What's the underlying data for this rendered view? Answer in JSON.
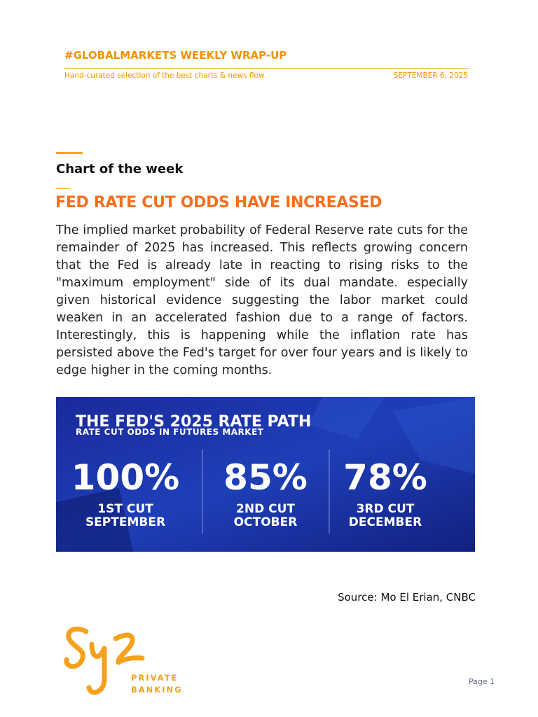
{
  "header": {
    "title": "#GLOBALMARKETS WEEKLY WRAP-UP",
    "subtitle": "Hand-curated selection of the best charts & news flow",
    "date": "SEPTEMBER 6, 2025"
  },
  "section": {
    "label": "Chart of the week",
    "headline": "FED RATE CUT ODDS HAVE INCREASED",
    "body": "The implied market probability of Federal Reserve rate cuts for the remainder of 2025 has increased. This reflects growing concern that the Fed is already late in reacting to rising risks to the \"maximum employment\" side of its dual mandate. especially given historical evidence suggesting the labor market could weaken in an accelerated fashion due to a range of factors. Interestingly, this is happening while the inflation rate has persisted above the Fed's target for over four years and is likely to edge higher in the coming months."
  },
  "graphic": {
    "title": "THE FED'S 2025 RATE PATH",
    "subtitle": "RATE CUT ODDS IN FUTURES MARKET",
    "items": [
      {
        "odds": "100%",
        "cut": "1ST CUT",
        "month": "SEPTEMBER"
      },
      {
        "odds": "85%",
        "cut": "2ND CUT",
        "month": "OCTOBER"
      },
      {
        "odds": "78%",
        "cut": "3RD CUT",
        "month": "DECEMBER"
      }
    ]
  },
  "source": "Source: Mo El Erian, CNBC",
  "footer": {
    "logo_line1": "PRIVATE",
    "logo_line2": "BANKING",
    "page": "Page 1"
  }
}
